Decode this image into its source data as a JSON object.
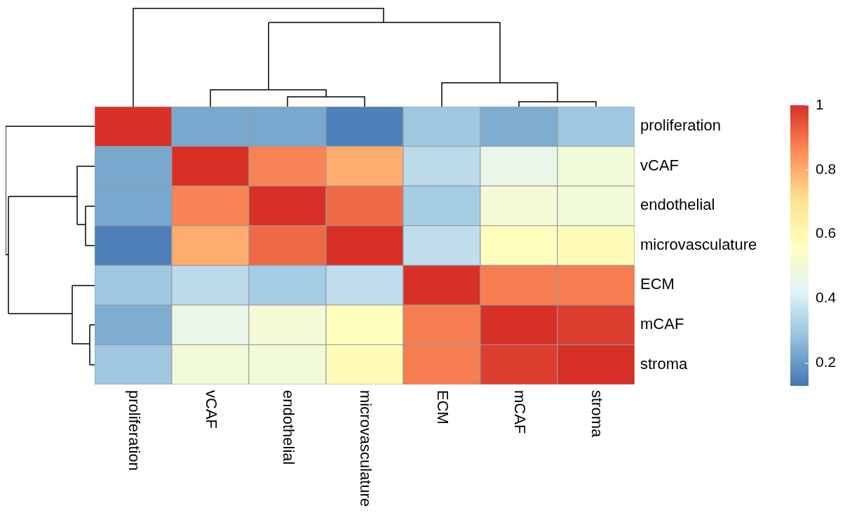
{
  "chart_data": {
    "type": "heatmap",
    "categories": [
      "proliferation",
      "vCAF",
      "endothelial",
      "microvasculature",
      "ECM",
      "mCAF",
      "stroma"
    ],
    "y_categories": [
      "proliferation",
      "vCAF",
      "endothelial",
      "microvasculature",
      "ECM",
      "mCAF",
      "stroma"
    ],
    "cells": [
      [
        1,
        0.23,
        0.23,
        0.15,
        0.3,
        0.24,
        0.3
      ],
      [
        0.23,
        1,
        0.87,
        0.8,
        0.35,
        0.46,
        0.5
      ],
      [
        0.23,
        0.87,
        1,
        0.91,
        0.31,
        0.51,
        0.5
      ],
      [
        0.15,
        0.8,
        0.91,
        1,
        0.36,
        0.57,
        0.58
      ],
      [
        0.3,
        0.35,
        0.31,
        0.36,
        1,
        0.88,
        0.88
      ],
      [
        0.24,
        0.46,
        0.51,
        0.57,
        0.88,
        1,
        0.98
      ],
      [
        0.3,
        0.5,
        0.5,
        0.58,
        0.88,
        0.98,
        1
      ]
    ],
    "clim": [
      0.13,
      1
    ],
    "cticks": [
      0.2,
      0.4,
      0.6,
      0.8,
      1
    ]
  }
}
